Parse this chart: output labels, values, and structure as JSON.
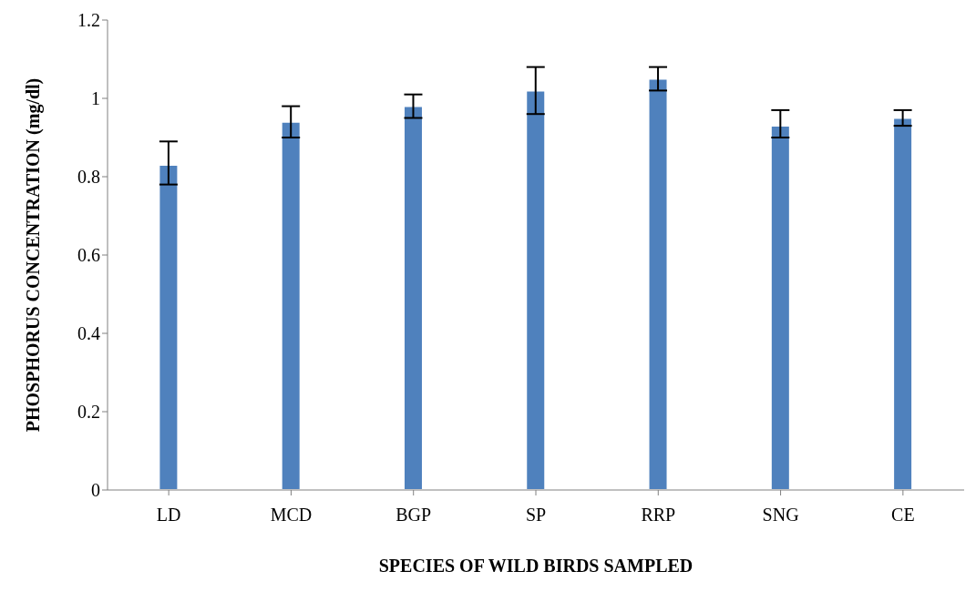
{
  "chart_data": {
    "type": "bar",
    "xlabel": "SPECIES OF WILD BIRDS SAMPLED",
    "ylabel": "PHOSPHORUS CONCENTRATION (mg/dl)",
    "categories": [
      "LD",
      "MCD",
      "BGP",
      "SP",
      "RRP",
      "SNG",
      "CE"
    ],
    "values": [
      0.83,
      0.94,
      0.98,
      1.02,
      1.05,
      0.93,
      0.95
    ],
    "errors": [
      [
        0.78,
        0.89
      ],
      [
        0.9,
        0.98
      ],
      [
        0.95,
        1.01
      ],
      [
        0.96,
        1.08
      ],
      [
        1.02,
        1.08
      ],
      [
        0.9,
        0.97
      ],
      [
        0.93,
        0.97
      ]
    ],
    "color": "#4f81bd",
    "ylim": [
      0,
      1.2
    ],
    "yticks": [
      0,
      0.2,
      0.4,
      0.6,
      0.8,
      1,
      1.2
    ],
    "grid": false,
    "legend": false
  }
}
